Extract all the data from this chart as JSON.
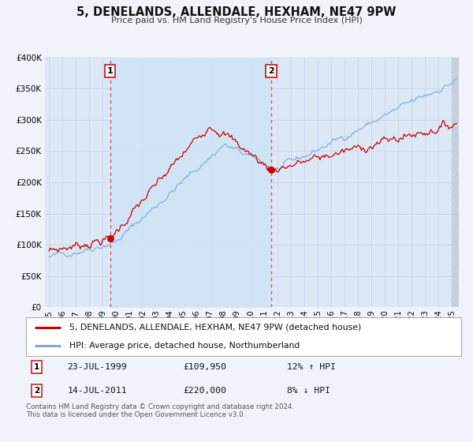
{
  "title": "5, DENELANDS, ALLENDALE, HEXHAM, NE47 9PW",
  "subtitle": "Price paid vs. HM Land Registry's House Price Index (HPI)",
  "background_color": "#f0f4fa",
  "plot_bg_color": "#dce8f5",
  "grid_color": "#c8d4e8",
  "ylim": [
    0,
    400000
  ],
  "xlim_start": 1994.7,
  "xlim_end": 2025.5,
  "yticks": [
    0,
    50000,
    100000,
    150000,
    200000,
    250000,
    300000,
    350000,
    400000
  ],
  "ytick_labels": [
    "£0",
    "£50K",
    "£100K",
    "£150K",
    "£200K",
    "£250K",
    "£300K",
    "£350K",
    "£400K"
  ],
  "xticks": [
    1995,
    1996,
    1997,
    1998,
    1999,
    2000,
    2001,
    2002,
    2003,
    2004,
    2005,
    2006,
    2007,
    2008,
    2009,
    2010,
    2011,
    2012,
    2013,
    2014,
    2015,
    2016,
    2017,
    2018,
    2019,
    2020,
    2021,
    2022,
    2023,
    2024,
    2025
  ],
  "sale1_x": 1999.55,
  "sale1_y": 109950,
  "sale2_x": 2011.53,
  "sale2_y": 220000,
  "red_line_color": "#cc0000",
  "blue_line_color": "#7aaadd",
  "marker_color": "#cc0000",
  "dashed_line_color": "#dd4444",
  "shade_between_color": "#d0e4f5",
  "legend_label_red": "5, DENELANDS, ALLENDALE, HEXHAM, NE47 9PW (detached house)",
  "legend_label_blue": "HPI: Average price, detached house, Northumberland",
  "footnote": "Contains HM Land Registry data © Crown copyright and database right 2024.\nThis data is licensed under the Open Government Licence v3.0.",
  "sale1_date": "23-JUL-1999",
  "sale1_price": "£109,950",
  "sale1_hpi": "12% ↑ HPI",
  "sale2_date": "14-JUL-2011",
  "sale2_price": "£220,000",
  "sale2_hpi": "8% ↓ HPI"
}
